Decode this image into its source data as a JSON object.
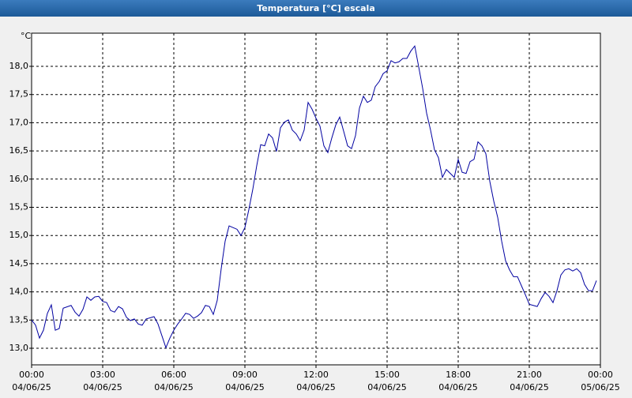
{
  "chart_data": {
    "type": "line",
    "title": "Temperatura [°C] escala",
    "y_label": "°C",
    "x": [
      0,
      10,
      20,
      30,
      40,
      50,
      60,
      70,
      80,
      100,
      110,
      120,
      130,
      140,
      150,
      160,
      170,
      180,
      190,
      200,
      210,
      220,
      230,
      240,
      250,
      260,
      270,
      280,
      290,
      310,
      320,
      330,
      340,
      350,
      360,
      370,
      380,
      390,
      400,
      410,
      420,
      430,
      440,
      450,
      460,
      470,
      480,
      490,
      500,
      510,
      520,
      530,
      540,
      550,
      560,
      570,
      580,
      590,
      600,
      610,
      620,
      630,
      640,
      650,
      660,
      670,
      680,
      690,
      700,
      710,
      720,
      730,
      740,
      750,
      760,
      770,
      780,
      790,
      800,
      810,
      820,
      830,
      840,
      850,
      860,
      870,
      880,
      890,
      900,
      910,
      920,
      930,
      940,
      950,
      960,
      970,
      980,
      990,
      1000,
      1010,
      1020,
      1030,
      1040,
      1050,
      1060,
      1070,
      1080,
      1090,
      1100,
      1110,
      1120,
      1130,
      1140,
      1150,
      1160,
      1170,
      1180,
      1190,
      1200,
      1210,
      1220,
      1230,
      1240,
      1250,
      1260,
      1270,
      1280,
      1290,
      1300,
      1310,
      1320,
      1330,
      1340,
      1350,
      1360,
      1370,
      1380,
      1390,
      1400,
      1410,
      1420,
      1430
    ],
    "series": [
      {
        "name": "Temperatura",
        "color": "#0000a0",
        "values": [
          13.5,
          13.41,
          13.18,
          13.32,
          13.62,
          13.77,
          13.32,
          13.35,
          13.71,
          13.76,
          13.64,
          13.57,
          13.69,
          13.91,
          13.85,
          13.91,
          13.92,
          13.83,
          13.81,
          13.67,
          13.64,
          13.74,
          13.7,
          13.55,
          13.49,
          13.52,
          13.43,
          13.41,
          13.52,
          13.56,
          13.43,
          13.22,
          13.01,
          13.18,
          13.32,
          13.43,
          13.52,
          13.62,
          13.6,
          13.53,
          13.57,
          13.63,
          13.76,
          13.74,
          13.6,
          13.85,
          14.41,
          14.9,
          15.17,
          15.14,
          15.11,
          15.0,
          15.14,
          15.46,
          15.82,
          16.24,
          16.61,
          16.59,
          16.8,
          16.73,
          16.49,
          16.91,
          17.01,
          17.05,
          16.87,
          16.8,
          16.68,
          16.87,
          17.36,
          17.24,
          17.08,
          16.94,
          16.59,
          16.47,
          16.73,
          16.96,
          17.1,
          16.85,
          16.59,
          16.54,
          16.77,
          17.26,
          17.47,
          17.36,
          17.4,
          17.64,
          17.73,
          17.87,
          17.92,
          18.1,
          18.06,
          18.08,
          18.14,
          18.14,
          18.27,
          18.36,
          17.99,
          17.61,
          17.17,
          16.87,
          16.52,
          16.38,
          16.03,
          16.17,
          16.1,
          16.03,
          16.35,
          16.12,
          16.1,
          16.31,
          16.35,
          16.66,
          16.59,
          16.45,
          15.96,
          15.61,
          15.32,
          14.9,
          14.55,
          14.39,
          14.27,
          14.27,
          14.11,
          13.95,
          13.78,
          13.76,
          13.74,
          13.88,
          13.99,
          13.92,
          13.81,
          14.02,
          14.3,
          14.39,
          14.41,
          14.37,
          14.41,
          14.34,
          14.13,
          14.02,
          14.02,
          14.2
        ]
      }
    ],
    "xlim": [
      0,
      1440
    ],
    "xticks": [
      {
        "value": 0,
        "label": "00:00"
      },
      {
        "value": 180,
        "label": "03:00"
      },
      {
        "value": 360,
        "label": "06:00"
      },
      {
        "value": 540,
        "label": "09:00"
      },
      {
        "value": 720,
        "label": "12:00"
      },
      {
        "value": 900,
        "label": "15:00"
      },
      {
        "value": 1080,
        "label": "18:00"
      },
      {
        "value": 1260,
        "label": "21:00"
      },
      {
        "value": 1440,
        "label": "00:00"
      }
    ],
    "xtick_dates": [
      "04/06/25",
      "04/06/25",
      "04/06/25",
      "04/06/25",
      "04/06/25",
      "04/06/25",
      "04/06/25",
      "04/06/25",
      "05/06/25"
    ],
    "ylim": [
      12.706,
      18.588
    ],
    "yticks": [
      {
        "value": 13,
        "label": "13,0"
      },
      {
        "value": 13.5,
        "label": "13,5"
      },
      {
        "value": 14,
        "label": "14,0"
      },
      {
        "value": 14.5,
        "label": "14,5"
      },
      {
        "value": 15,
        "label": "15,0"
      },
      {
        "value": 15.5,
        "label": "15,5"
      },
      {
        "value": 16,
        "label": "16,0"
      },
      {
        "value": 16.5,
        "label": "16,5"
      },
      {
        "value": 17,
        "label": "17,0"
      },
      {
        "value": 17.5,
        "label": "17,5"
      },
      {
        "value": 18,
        "label": "18,0"
      }
    ],
    "grid": true
  }
}
